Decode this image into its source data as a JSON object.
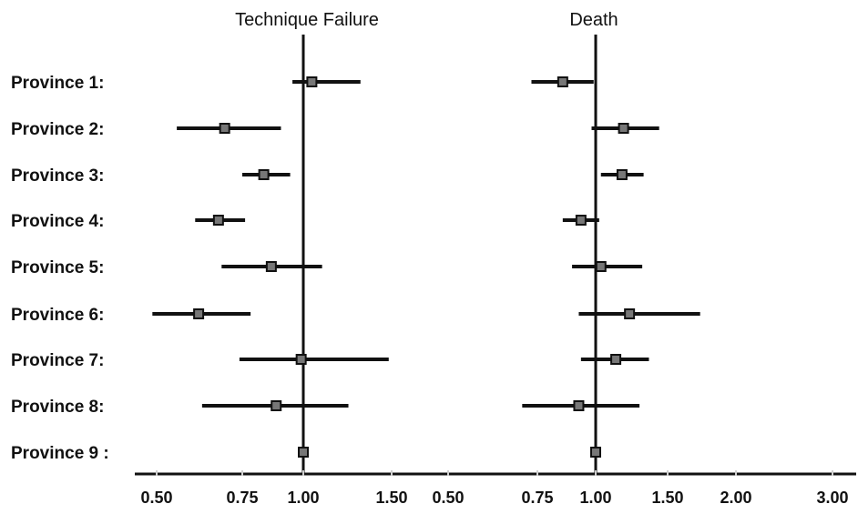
{
  "chart_data": {
    "type": "forest",
    "xscale": "log",
    "row_labels": [
      "Province 1:",
      "Province 2:",
      "Province 3:",
      "Province 4:",
      "Province 5:",
      "Province 6:",
      "Province 7:",
      "Province 8:",
      "Province 9 :"
    ],
    "panels": [
      {
        "title": "Technique Failure",
        "reference": 1.0,
        "xticks": [
          {
            "value": 0.5,
            "label": "0.50"
          },
          {
            "value": 0.75,
            "label": "0.75"
          },
          {
            "value": 1.0,
            "label": "1.00"
          },
          {
            "value": 1.5,
            "label": "1.50"
          }
        ],
        "points": [
          {
            "est": 1.04,
            "lo": 0.95,
            "hi": 1.3
          },
          {
            "est": 0.69,
            "lo": 0.55,
            "hi": 0.9
          },
          {
            "est": 0.83,
            "lo": 0.75,
            "hi": 0.94
          },
          {
            "est": 0.67,
            "lo": 0.6,
            "hi": 0.76
          },
          {
            "est": 0.86,
            "lo": 0.68,
            "hi": 1.09
          },
          {
            "est": 0.61,
            "lo": 0.49,
            "hi": 0.78
          },
          {
            "est": 0.99,
            "lo": 0.74,
            "hi": 1.48
          },
          {
            "est": 0.88,
            "lo": 0.62,
            "hi": 1.23
          },
          {
            "est": 1.0,
            "lo": 1.0,
            "hi": 1.0
          }
        ]
      },
      {
        "title": "Death",
        "reference": 1.0,
        "xticks": [
          {
            "value": 0.5,
            "label": "0.50"
          },
          {
            "value": 0.75,
            "label": "0.75"
          },
          {
            "value": 1.0,
            "label": "1.00"
          },
          {
            "value": 1.5,
            "label": "1.50"
          },
          {
            "value": 2.0,
            "label": "2.00"
          },
          {
            "value": 3.0,
            "label": "3.00"
          }
        ],
        "points": [
          {
            "est": 0.85,
            "lo": 0.73,
            "hi": 0.99
          },
          {
            "est": 1.17,
            "lo": 0.98,
            "hi": 1.43
          },
          {
            "est": 1.16,
            "lo": 1.03,
            "hi": 1.31
          },
          {
            "est": 0.93,
            "lo": 0.85,
            "hi": 1.02
          },
          {
            "est": 1.03,
            "lo": 0.89,
            "hi": 1.3
          },
          {
            "est": 1.21,
            "lo": 0.92,
            "hi": 1.72
          },
          {
            "est": 1.12,
            "lo": 0.93,
            "hi": 1.35
          },
          {
            "est": 0.92,
            "lo": 0.7,
            "hi": 1.28
          },
          {
            "est": 1.0,
            "lo": 1.0,
            "hi": 1.0
          }
        ]
      }
    ]
  }
}
